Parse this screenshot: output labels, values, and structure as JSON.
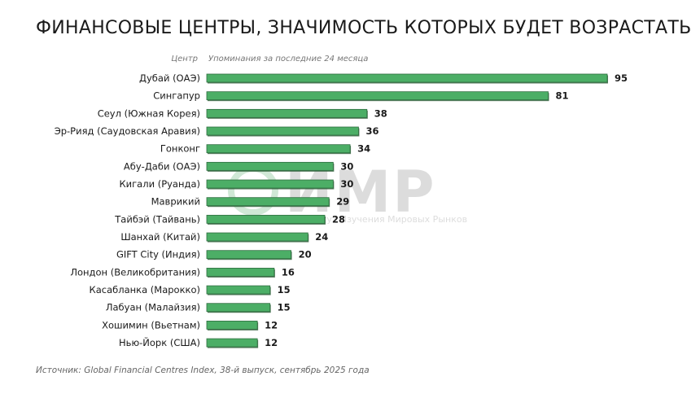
{
  "chart_data": {
    "type": "bar",
    "orientation": "horizontal",
    "title": "Финансовые центры, значимость которых будет возрастать",
    "category_header": "Центр",
    "value_header": "Упоминания за последние 24 месяца",
    "categories": [
      "Дубай (ОАЭ)",
      "Сингапур",
      "Сеул (Южная Корея)",
      "Эр-Рияд (Саудовская Аравия)",
      "Гонконг",
      "Абу-Даби (ОАЭ)",
      "Кигали (Руанда)",
      "Маврикий",
      "Тайбэй (Тайвань)",
      "Шанхай (Китай)",
      "GIFT City (Индия)",
      "Лондон (Великобритания)",
      "Касабланка (Марокко)",
      "Лабуан (Малайзия)",
      "Хошимин (Вьетнам)",
      "Нью-Йорк (США)"
    ],
    "values": [
      95,
      81,
      38,
      36,
      34,
      30,
      30,
      29,
      28,
      24,
      20,
      16,
      15,
      15,
      12,
      12
    ],
    "xlim": [
      0,
      95
    ],
    "grid": false,
    "data_labels": true,
    "bar_color": "#4cae66",
    "source": "Источник: Global Financial Centres Index, 38-й выпуск, сентябрь 2025 года"
  },
  "watermark": {
    "logo": "ИМР",
    "subtitle": "Институт Изучения Мировых Рынков"
  }
}
